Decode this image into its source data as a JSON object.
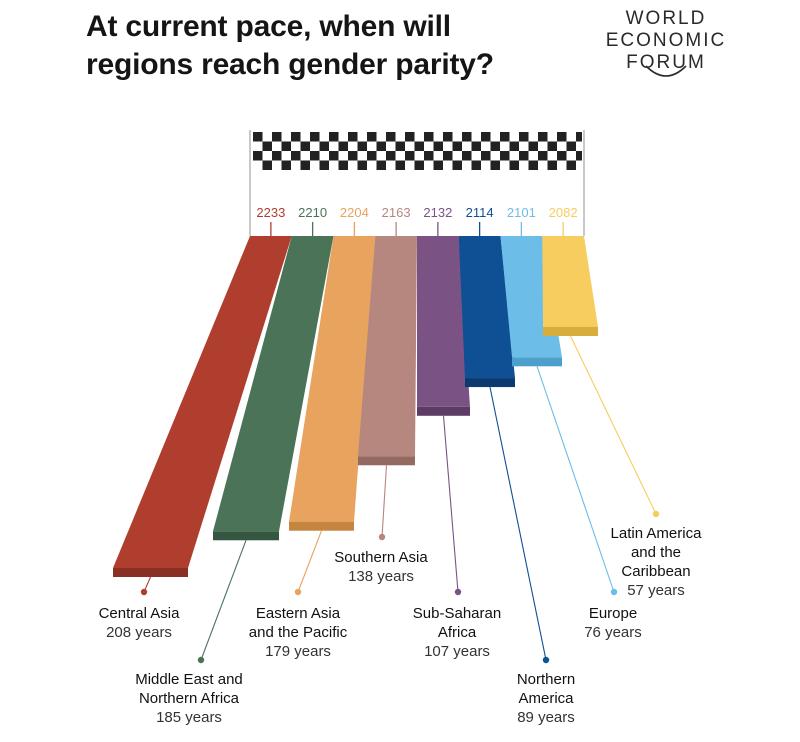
{
  "title": "At current pace, when will regions reach gender parity?",
  "logo": {
    "lines": [
      "WORLD",
      "ECONOMIC",
      "FORUM"
    ]
  },
  "chart_data": {
    "type": "bar",
    "title": "At current pace, when will regions reach gender parity?",
    "categories": [
      "Central Asia",
      "Middle East and Northern Africa",
      "Eastern Asia and the Pacific",
      "Southern Asia",
      "Sub-Saharan Africa",
      "Northern America",
      "Europe",
      "Latin America and the Caribbean"
    ],
    "series": [
      {
        "values": [
          2233,
          2210,
          2204,
          2163,
          2132,
          2114,
          2101,
          2082
        ]
      },
      {
        "values": [
          208,
          185,
          179,
          138,
          107,
          89,
          76,
          57
        ]
      }
    ],
    "regions": [
      {
        "name_lines": [
          "Central Asia"
        ],
        "parity_year": "2233",
        "years_text": "208 years",
        "years": 208,
        "color": "#b03e2f",
        "shade": "#8a2f23"
      },
      {
        "name_lines": [
          "Middle East and",
          "Northern Africa"
        ],
        "parity_year": "2210",
        "years_text": "185 years",
        "years": 185,
        "color": "#4a7358",
        "shade": "#355742"
      },
      {
        "name_lines": [
          "Eastern Asia",
          "and the Pacific"
        ],
        "parity_year": "2204",
        "years_text": "179 years",
        "years": 179,
        "color": "#e8a35f",
        "shade": "#c5843f"
      },
      {
        "name_lines": [
          "Southern Asia"
        ],
        "parity_year": "2163",
        "years_text": "138 years",
        "years": 138,
        "color": "#b5877f",
        "shade": "#946961"
      },
      {
        "name_lines": [
          "Sub-Saharan",
          "Africa"
        ],
        "parity_year": "2132",
        "years_text": "107 years",
        "years": 107,
        "color": "#7a5384",
        "shade": "#5c3b65"
      },
      {
        "name_lines": [
          "Northern",
          "America"
        ],
        "parity_year": "2114",
        "years_text": "89 years",
        "years": 89,
        "color": "#0f4f94",
        "shade": "#0a3a70"
      },
      {
        "name_lines": [
          "Europe"
        ],
        "parity_year": "2101",
        "years_text": "76 years",
        "years": 76,
        "color": "#6cbde8",
        "shade": "#4d9fcc"
      },
      {
        "name_lines": [
          "Latin America",
          "and the",
          "Caribbean"
        ],
        "parity_year": "2082",
        "years_text": "57 years",
        "years": 57,
        "color": "#f6cd5e",
        "shade": "#d8ad3e"
      }
    ]
  }
}
